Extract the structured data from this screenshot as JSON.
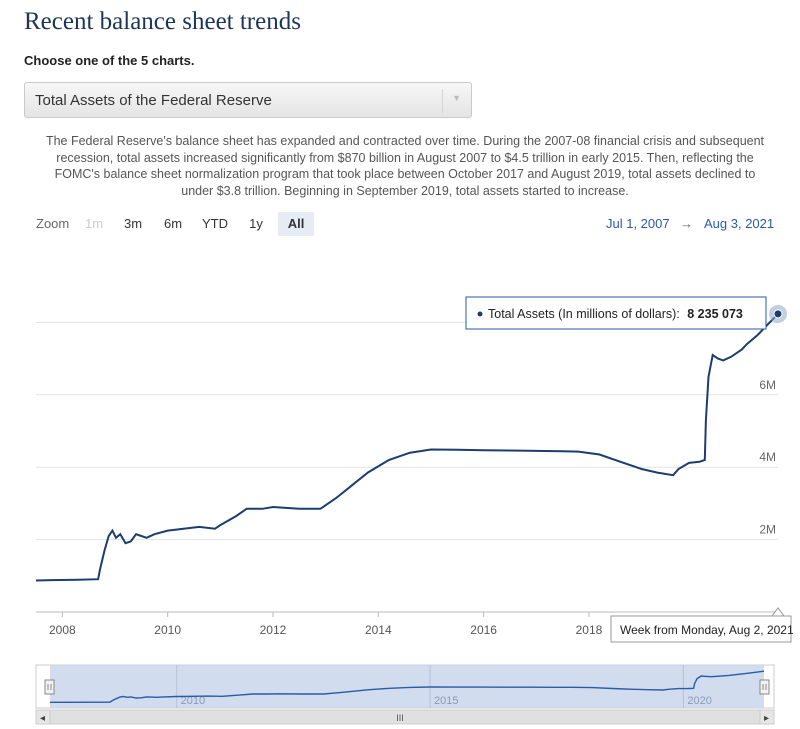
{
  "page_title": "Recent balance sheet trends",
  "chooser_label": "Choose one of the 5 charts.",
  "select": {
    "value": "Total Assets of the Federal Reserve"
  },
  "description": "The Federal Reserve's balance sheet has expanded and contracted over time. During the 2007-08 financial crisis and subsequent recession, total assets increased significantly from $870 billion in August 2007 to $4.5 trillion in early 2015. Then, reflecting the FOMC's balance sheet normalization program that took place between October 2017 and August 2019, total assets declined to under $3.8 trillion. Beginning in September 2019, total assets started to increase.",
  "zoom": {
    "label": "Zoom",
    "buttons": [
      {
        "label": "1m",
        "state": "disabled"
      },
      {
        "label": "3m",
        "state": "normal"
      },
      {
        "label": "6m",
        "state": "normal"
      },
      {
        "label": "YTD",
        "state": "normal"
      },
      {
        "label": "1y",
        "state": "normal"
      },
      {
        "label": "All",
        "state": "active"
      }
    ]
  },
  "range": {
    "from": "Jul 1, 2007",
    "arrow": "→",
    "to": "Aug 3, 2021"
  },
  "chart_data": {
    "type": "line",
    "series": [
      {
        "name": "Total Assets (In millions of dollars)",
        "color": "#1c3d6e",
        "points": [
          [
            2007.5,
            870000
          ],
          [
            2007.8,
            880000
          ],
          [
            2008.3,
            890000
          ],
          [
            2008.68,
            905000
          ],
          [
            2008.72,
            1200000
          ],
          [
            2008.8,
            1700000
          ],
          [
            2008.88,
            2100000
          ],
          [
            2008.95,
            2250000
          ],
          [
            2009.02,
            2050000
          ],
          [
            2009.1,
            2150000
          ],
          [
            2009.2,
            1900000
          ],
          [
            2009.3,
            1950000
          ],
          [
            2009.4,
            2150000
          ],
          [
            2009.5,
            2100000
          ],
          [
            2009.6,
            2050000
          ],
          [
            2009.75,
            2150000
          ],
          [
            2010.0,
            2250000
          ],
          [
            2010.3,
            2300000
          ],
          [
            2010.6,
            2350000
          ],
          [
            2010.9,
            2300000
          ],
          [
            2011.0,
            2400000
          ],
          [
            2011.3,
            2650000
          ],
          [
            2011.5,
            2850000
          ],
          [
            2011.8,
            2850000
          ],
          [
            2012.0,
            2900000
          ],
          [
            2012.5,
            2850000
          ],
          [
            2012.9,
            2850000
          ],
          [
            2013.2,
            3150000
          ],
          [
            2013.5,
            3500000
          ],
          [
            2013.8,
            3850000
          ],
          [
            2014.2,
            4200000
          ],
          [
            2014.6,
            4400000
          ],
          [
            2015.0,
            4490000
          ],
          [
            2015.5,
            4480000
          ],
          [
            2016.0,
            4470000
          ],
          [
            2016.5,
            4460000
          ],
          [
            2017.0,
            4450000
          ],
          [
            2017.5,
            4440000
          ],
          [
            2017.8,
            4430000
          ],
          [
            2018.2,
            4350000
          ],
          [
            2018.6,
            4150000
          ],
          [
            2019.0,
            3950000
          ],
          [
            2019.3,
            3850000
          ],
          [
            2019.6,
            3780000
          ],
          [
            2019.7,
            3950000
          ],
          [
            2019.9,
            4120000
          ],
          [
            2020.1,
            4150000
          ],
          [
            2020.2,
            4200000
          ],
          [
            2020.22,
            5300000
          ],
          [
            2020.27,
            6500000
          ],
          [
            2020.35,
            7100000
          ],
          [
            2020.45,
            7000000
          ],
          [
            2020.55,
            6950000
          ],
          [
            2020.7,
            7050000
          ],
          [
            2020.9,
            7250000
          ],
          [
            2021.0,
            7400000
          ],
          [
            2021.2,
            7650000
          ],
          [
            2021.4,
            7950000
          ],
          [
            2021.59,
            8235073
          ]
        ]
      }
    ],
    "x_ticks": [
      "2008",
      "2010",
      "2012",
      "2014",
      "2016",
      "2018"
    ],
    "y_ticks": [
      "2M",
      "4M",
      "6M"
    ],
    "xlim": [
      2007.5,
      2021.59
    ],
    "ylim": [
      0,
      10000000
    ],
    "grid": "horizontal",
    "tooltip": {
      "label": "Total Assets (In millions of dollars):",
      "value": "8 235 073"
    },
    "crosshair_label": "Week from Monday, Aug 2, 2021",
    "navigator": {
      "ticks": [
        "2010",
        "2015",
        "2020"
      ],
      "scrollbar_grip": "III",
      "left_arrow": "◂",
      "right_arrow": "▸"
    }
  }
}
